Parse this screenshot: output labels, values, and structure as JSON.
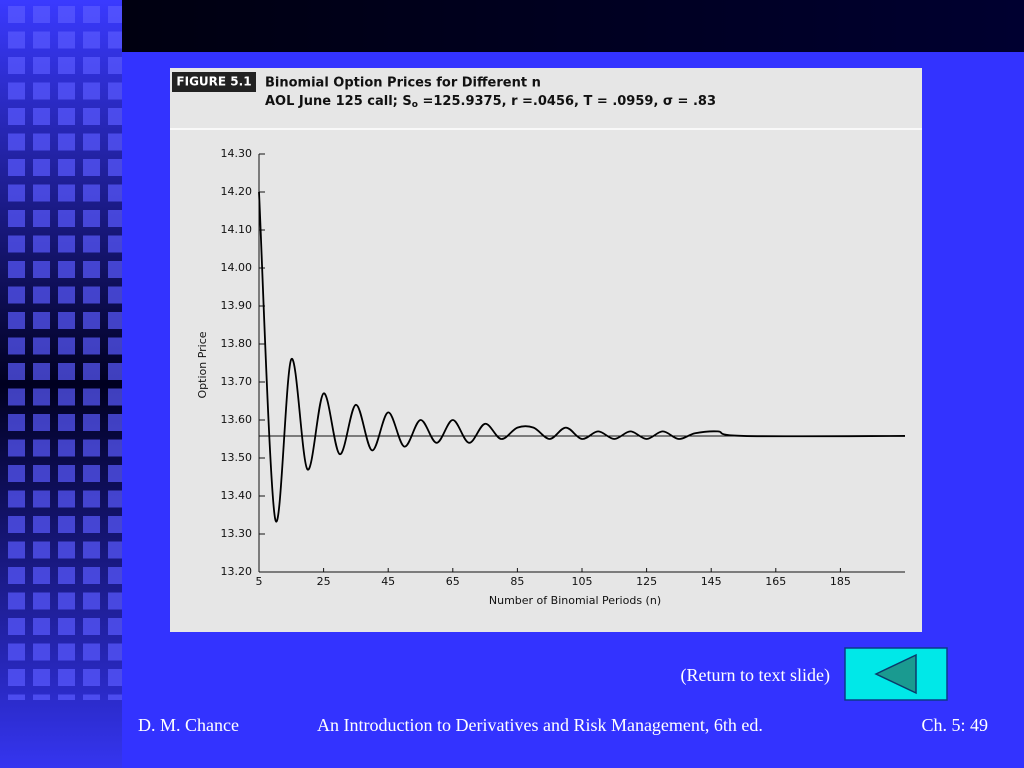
{
  "chart_data": {
    "type": "line",
    "figure_label": "FIGURE 5.1",
    "title": "Binomial Option Prices for Different n",
    "subtitle": [
      "AOL June 125 call; S",
      "o",
      " =125.9375, r =.0456, T = .0959, σ = .83"
    ],
    "y_label": "Option Price",
    "x_label": "Number of Binomial Periods (n)",
    "x": [
      5,
      10,
      15,
      20,
      25,
      30,
      35,
      40,
      45,
      50,
      55,
      60,
      65,
      70,
      75,
      80,
      85,
      90,
      95,
      100,
      105,
      110,
      115,
      120,
      125,
      130,
      135,
      140,
      147,
      155,
      205
    ],
    "values": [
      14.2,
      13.34,
      13.76,
      13.47,
      13.67,
      13.51,
      13.64,
      13.52,
      13.62,
      13.53,
      13.6,
      13.54,
      13.6,
      13.54,
      13.59,
      13.55,
      13.58,
      13.58,
      13.55,
      13.58,
      13.55,
      13.57,
      13.55,
      13.57,
      13.55,
      13.57,
      13.55,
      13.565,
      13.57,
      13.558,
      13.558
    ],
    "color": "#000000",
    "reference_line": 13.558,
    "xlim": [
      5,
      205
    ],
    "xticks": [
      5,
      25,
      45,
      65,
      85,
      105,
      125,
      145,
      165,
      185
    ],
    "ylim": [
      13.2,
      14.3
    ],
    "yticks": [
      {
        "value": 13.2,
        "label": "13.20"
      },
      {
        "value": 13.3,
        "label": "13.30"
      },
      {
        "value": 13.4,
        "label": "13.40"
      },
      {
        "value": 13.5,
        "label": "13.50"
      },
      {
        "value": 13.6,
        "label": "13.60"
      },
      {
        "value": 13.7,
        "label": "13.70"
      },
      {
        "value": 13.8,
        "label": "13.80"
      },
      {
        "value": 13.9,
        "label": "13.90"
      },
      {
        "value": 14.0,
        "label": "14.00"
      },
      {
        "value": 14.1,
        "label": "14.10"
      },
      {
        "value": 14.2,
        "label": "14.20"
      },
      {
        "value": 14.3,
        "label": "14.30"
      }
    ],
    "grid": false
  },
  "slide": {
    "link": "(Return to text slide)",
    "footer": [
      "D. M. Chance",
      "An Introduction to Derivatives and Risk Management, 6th ed.",
      "Ch. 5:  49"
    ]
  }
}
